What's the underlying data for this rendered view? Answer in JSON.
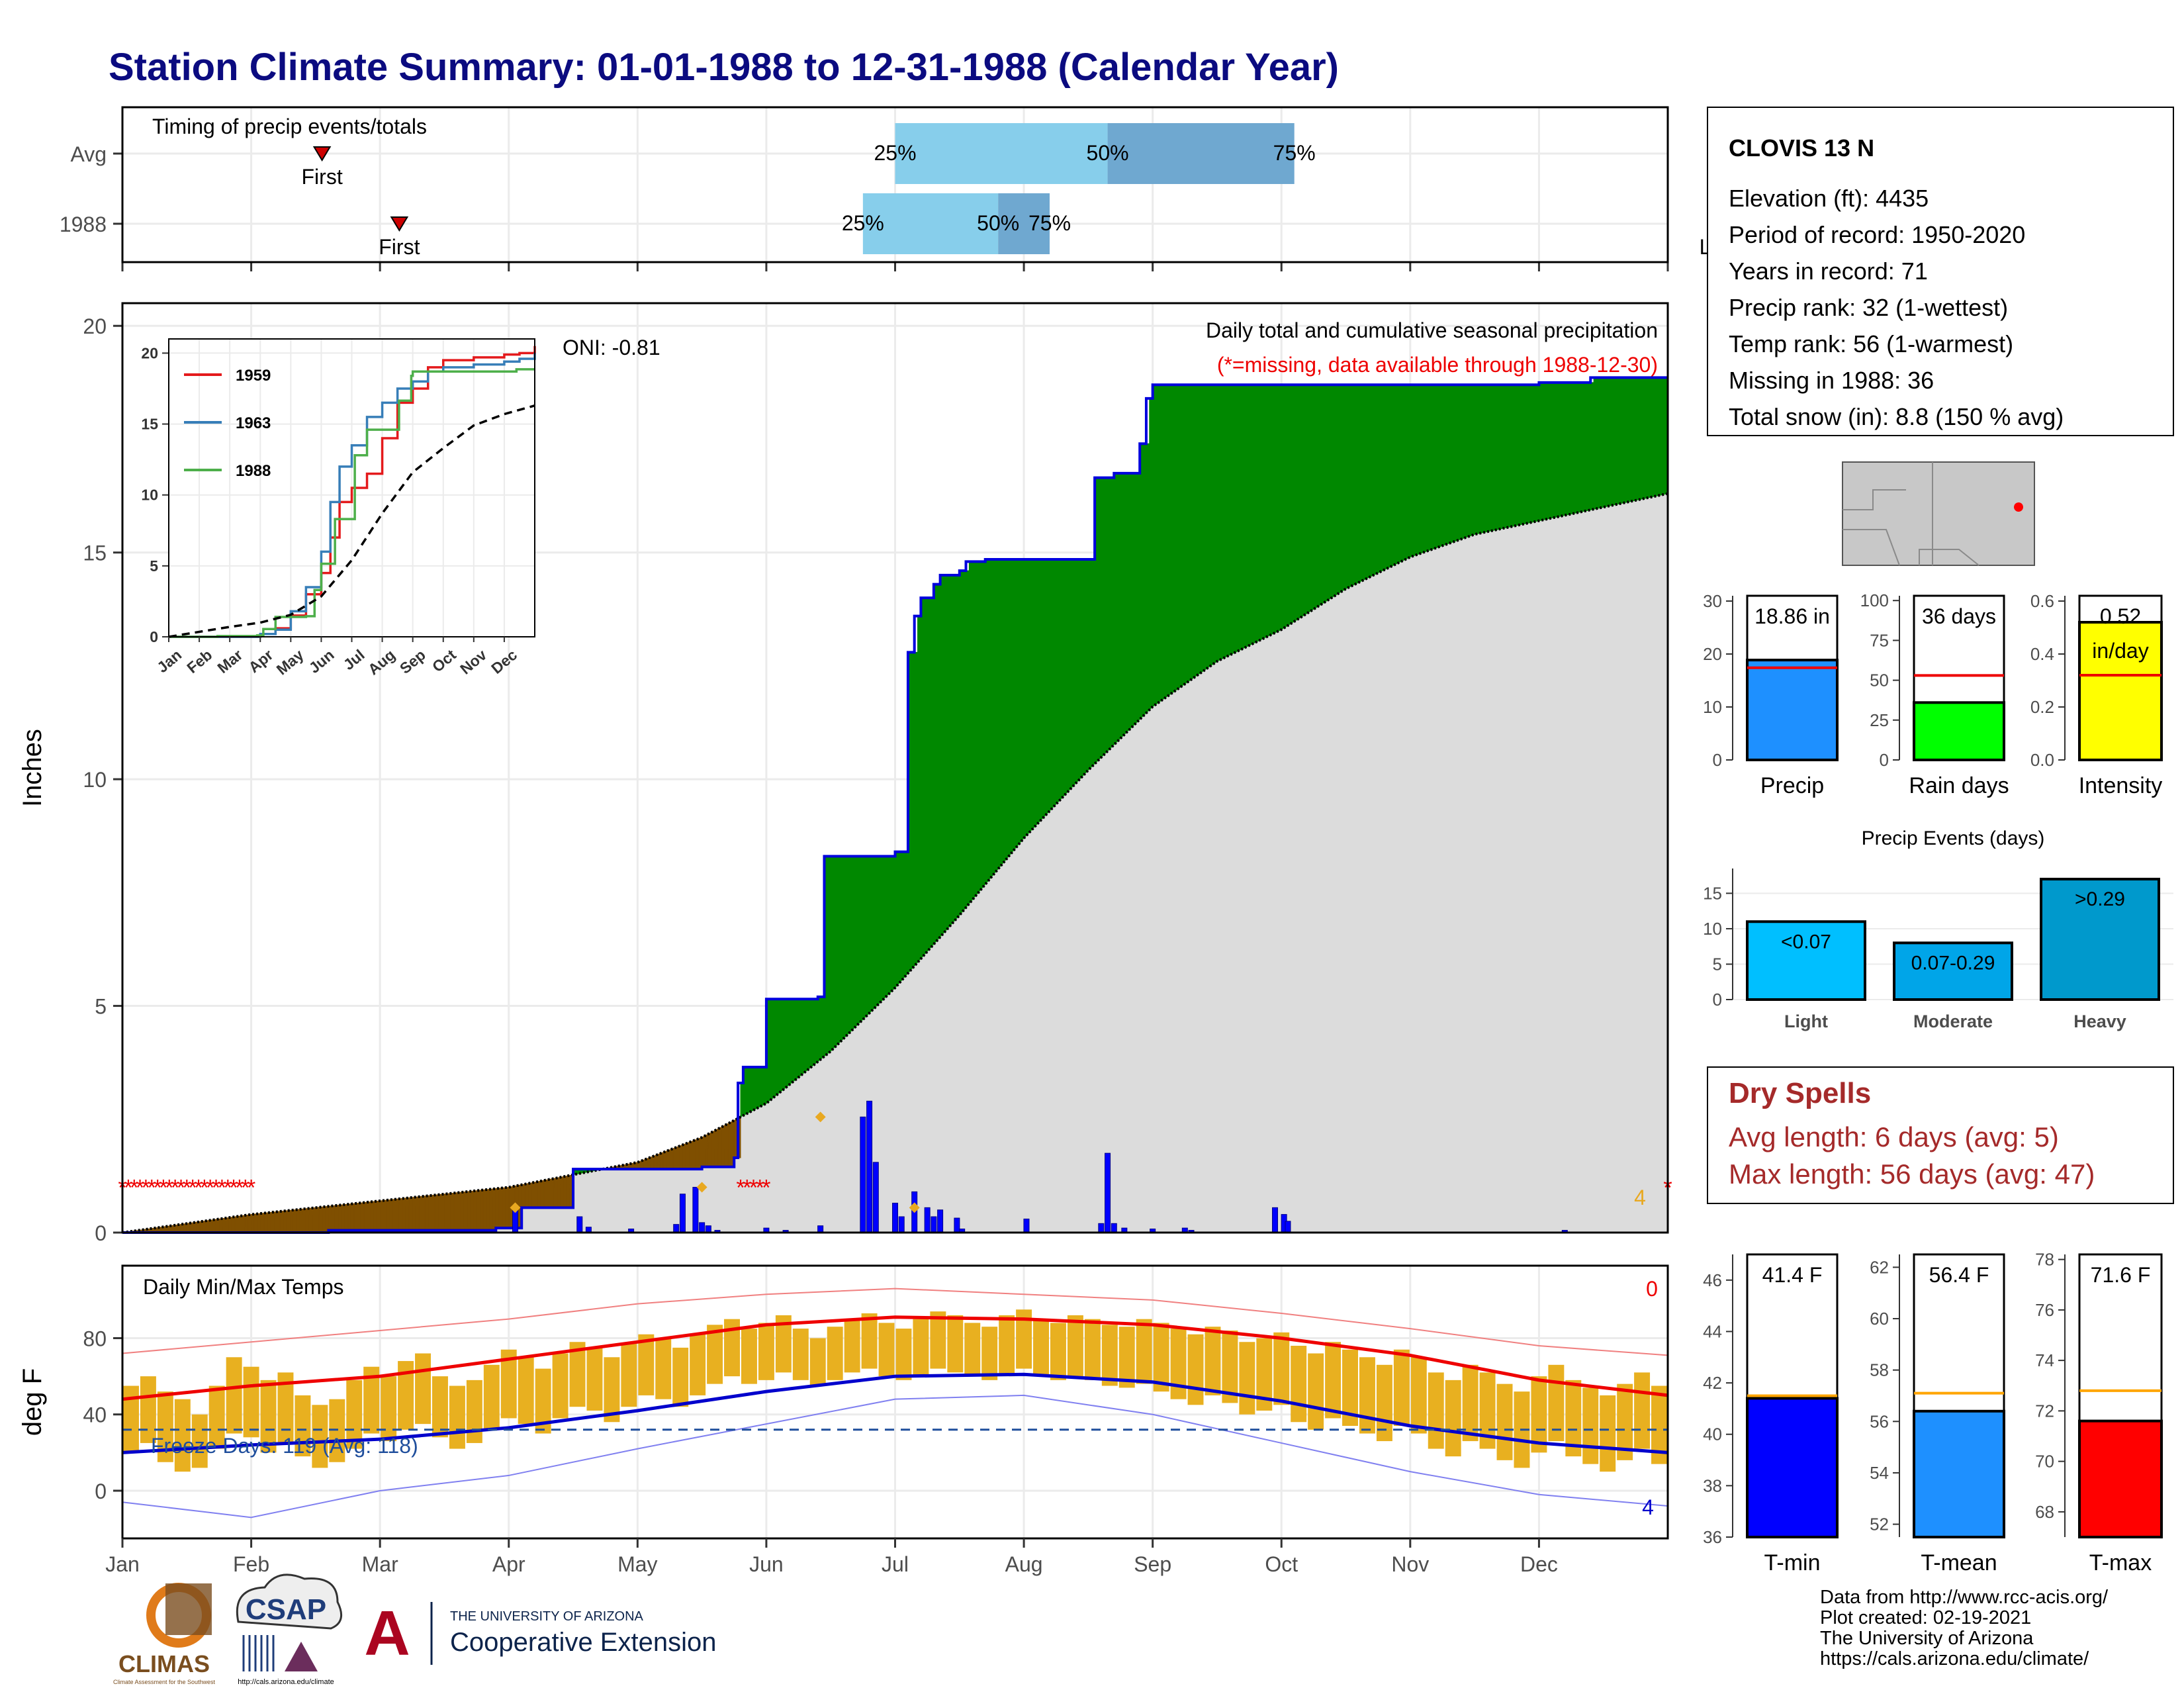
{
  "title": "Station Climate Summary: 01-01-1988 to 12-31-1988 (Calendar Year)",
  "colors": {
    "title": "#0b0b80",
    "green": "#008800",
    "brown": "#7f4f00",
    "grey_fill": "#dcdcdc",
    "blue": "#0000ff",
    "orange": "#e8a820",
    "red": "#ee0000"
  },
  "chart_data": [
    {
      "panel": "timing",
      "type": "bar",
      "title": "Timing of precip events/totals",
      "rows": [
        {
          "label": "Avg",
          "first_month": 1.55,
          "q25_month": 6.0,
          "q50_month": 7.65,
          "q75_month": 9.1,
          "last_month": 12.7
        },
        {
          "label": "1988",
          "first_month": 2.15,
          "q25_month": 5.75,
          "q50_month": 6.8,
          "q75_month": 7.2,
          "last_month": 12.4
        }
      ],
      "quantile_labels": [
        "25%",
        "50%",
        "75%"
      ],
      "marker_labels": [
        "First",
        "Last"
      ]
    },
    {
      "panel": "precip",
      "type": "area",
      "ylabel": "Inches",
      "ylim": [
        0,
        20.5
      ],
      "yticks": [
        0,
        5,
        10,
        15,
        20
      ],
      "text_right": "Daily total and cumulative seasonal precipitation",
      "missing_note": "(*=missing, data available through 1988-12-30)",
      "oni": "ONI: -0.81",
      "end_count": "4",
      "cumulative_1988": {
        "x_month": [
          0,
          1.6,
          2.9,
          3.1,
          3.5,
          4.5,
          4.75,
          4.78,
          4.82,
          5.0,
          5.4,
          5.45,
          6.0,
          6.1,
          6.15,
          6.2,
          6.3,
          6.35,
          6.5,
          6.55,
          6.7,
          7.0,
          7.55,
          7.7,
          7.9,
          7.95,
          8.0,
          9.0,
          11.0,
          11.4,
          12.0
        ],
        "y": [
          0.0,
          0.05,
          0.1,
          0.55,
          1.4,
          1.45,
          1.65,
          3.3,
          3.65,
          5.15,
          5.2,
          8.3,
          8.4,
          12.8,
          13.6,
          14.0,
          14.3,
          14.5,
          14.6,
          14.8,
          14.85,
          14.85,
          16.65,
          16.75,
          17.4,
          18.4,
          18.7,
          18.7,
          18.75,
          18.86,
          18.86
        ]
      },
      "average_cumulative": {
        "x_month": [
          0,
          1,
          2,
          3,
          4,
          4.5,
          5,
          5.5,
          6,
          6.5,
          7,
          7.5,
          8,
          8.5,
          9,
          9.5,
          10,
          10.5,
          11,
          11.5,
          12
        ],
        "y": [
          0.0,
          0.4,
          0.7,
          1.0,
          1.55,
          2.1,
          2.85,
          4.0,
          5.4,
          7.0,
          8.7,
          10.2,
          11.6,
          12.6,
          13.3,
          14.2,
          14.9,
          15.4,
          15.7,
          16.0,
          16.3
        ]
      },
      "daily_bars": {
        "x_month": [
          3.05,
          3.55,
          3.62,
          3.95,
          4.3,
          4.35,
          4.45,
          4.5,
          4.55,
          4.62,
          5.0,
          5.15,
          5.42,
          5.75,
          5.8,
          5.85,
          6.0,
          6.05,
          6.15,
          6.25,
          6.3,
          6.35,
          6.48,
          6.52,
          7.02,
          7.6,
          7.65,
          7.7,
          7.78,
          8.0,
          8.25,
          8.3,
          8.95,
          9.02,
          9.05,
          11.2
        ],
        "y": [
          0.55,
          0.35,
          0.12,
          0.08,
          0.18,
          0.85,
          1.0,
          0.22,
          0.15,
          0.05,
          0.1,
          0.05,
          0.15,
          2.55,
          2.9,
          1.55,
          0.65,
          0.35,
          0.9,
          0.55,
          0.35,
          0.5,
          0.32,
          0.08,
          0.3,
          0.2,
          1.75,
          0.2,
          0.1,
          0.08,
          0.1,
          0.05,
          0.55,
          0.4,
          0.25,
          0.05
        ]
      },
      "missing_markers": [
        {
          "from_month": 0.0,
          "to_month": 1.0
        },
        {
          "from_month": 4.8,
          "to_month": 5.0
        },
        {
          "from_month": 12.0,
          "to_month": 12.0
        }
      ]
    },
    {
      "panel": "inset",
      "type": "line",
      "xlabels": [
        "Jan",
        "Feb",
        "Mar",
        "Apr",
        "May",
        "Jun",
        "Jul",
        "Aug",
        "Sep",
        "Oct",
        "Nov",
        "Dec"
      ],
      "yticks": [
        0,
        5,
        10,
        15,
        20
      ],
      "series": [
        {
          "name": "1959",
          "color": "#e41a1c",
          "x_month": [
            0,
            3,
            3.5,
            4,
            4.5,
            5,
            5.3,
            5.6,
            6,
            6.5,
            7,
            7.5,
            8,
            8.5,
            9,
            10,
            11,
            11.5,
            12
          ],
          "y": [
            0,
            0.2,
            0.6,
            1.5,
            3.0,
            4.5,
            7.0,
            9.5,
            10.5,
            11.5,
            14.0,
            16.5,
            17.5,
            19.0,
            19.5,
            19.7,
            19.9,
            20.0,
            20.5
          ]
        },
        {
          "name": "1963",
          "color": "#377eb8",
          "x_month": [
            0,
            3,
            3.5,
            4,
            4.5,
            5,
            5.3,
            5.6,
            6,
            6.5,
            7,
            7.5,
            8,
            8.5,
            9,
            10,
            11,
            11.5,
            12
          ],
          "y": [
            0,
            0.2,
            0.5,
            1.8,
            3.5,
            6.0,
            9.5,
            12.0,
            13.5,
            15.5,
            16.5,
            17.5,
            18.0,
            18.7,
            19.0,
            19.2,
            19.4,
            19.6,
            20.0
          ]
        },
        {
          "name": "1988",
          "color": "#4daf4a",
          "x_month": [
            0,
            1.6,
            2.9,
            3.1,
            3.5,
            4.5,
            4.78,
            5.0,
            5.45,
            6.1,
            6.5,
            7.55,
            7.95,
            8.0,
            11.4,
            12
          ],
          "y": [
            0.0,
            0.05,
            0.1,
            0.55,
            1.4,
            1.45,
            3.3,
            5.15,
            8.3,
            12.8,
            14.6,
            16.65,
            18.4,
            18.7,
            18.86,
            18.86
          ]
        },
        {
          "name": "",
          "color": "#000000",
          "dashed": true,
          "x_month": [
            0,
            2,
            3,
            4,
            5,
            6,
            7,
            8,
            9,
            10,
            11,
            12
          ],
          "y": [
            0.0,
            0.7,
            1.0,
            1.55,
            2.85,
            5.4,
            8.7,
            11.6,
            13.3,
            14.9,
            15.7,
            16.3
          ]
        }
      ]
    },
    {
      "panel": "temps",
      "type": "bar",
      "title": "Daily Min/Max Temps",
      "ylabel": "deg F",
      "ylim": [
        -25,
        118
      ],
      "yticks": [
        0,
        40,
        80
      ],
      "freeze_line": 32,
      "freeze_text": "Freeze Days: 119 (Avg: 118)",
      "count_top": "0",
      "count_bottom": "4",
      "avg_max": {
        "x_month": [
          0,
          1,
          2,
          3,
          4,
          5,
          6,
          7,
          8,
          9,
          10,
          11,
          12
        ],
        "y": [
          48,
          55,
          60,
          69,
          78,
          87,
          91,
          90,
          87,
          80,
          71,
          58,
          50
        ]
      },
      "avg_min": {
        "x_month": [
          0,
          1,
          2,
          3,
          4,
          5,
          6,
          7,
          8,
          9,
          10,
          11,
          12
        ],
        "y": [
          20,
          24,
          27,
          33,
          42,
          52,
          60,
          61,
          57,
          47,
          34,
          25,
          20
        ]
      },
      "record_max": {
        "x_month": [
          0,
          1,
          2,
          3,
          4,
          5,
          6,
          7,
          8,
          9,
          10,
          11,
          12
        ],
        "y": [
          72,
          78,
          84,
          90,
          98,
          103,
          106,
          103,
          100,
          93,
          85,
          76,
          71
        ]
      },
      "record_min": {
        "x_month": [
          0,
          1,
          2,
          3,
          4,
          5,
          6,
          7,
          8,
          9,
          10,
          11,
          12
        ],
        "y": [
          -6,
          -14,
          0,
          8,
          22,
          35,
          48,
          50,
          40,
          25,
          10,
          -2,
          -8
        ]
      },
      "daily_hi": [
        55,
        60,
        52,
        48,
        40,
        55,
        70,
        65,
        58,
        62,
        50,
        45,
        48,
        58,
        65,
        60,
        68,
        72,
        60,
        55,
        58,
        66,
        74,
        70,
        64,
        72,
        78,
        75,
        70,
        77,
        82,
        80,
        75,
        82,
        87,
        90,
        85,
        88,
        92,
        85,
        80,
        86,
        90,
        93,
        88,
        85,
        90,
        94,
        92,
        88,
        86,
        92,
        95,
        90,
        88,
        92,
        90,
        87,
        86,
        90,
        88,
        85,
        82,
        86,
        84,
        78,
        80,
        83,
        76,
        72,
        78,
        74,
        70,
        66,
        74,
        70,
        62,
        58,
        66,
        62,
        56,
        52,
        60,
        66,
        58,
        54,
        50,
        56,
        62,
        55
      ],
      "daily_lo": [
        20,
        25,
        15,
        10,
        12,
        22,
        30,
        28,
        20,
        25,
        18,
        12,
        15,
        22,
        30,
        26,
        32,
        35,
        28,
        22,
        25,
        32,
        38,
        35,
        30,
        38,
        44,
        42,
        36,
        44,
        50,
        48,
        44,
        50,
        56,
        60,
        56,
        58,
        62,
        58,
        55,
        58,
        62,
        64,
        60,
        58,
        60,
        64,
        62,
        60,
        58,
        60,
        64,
        60,
        58,
        60,
        58,
        55,
        54,
        56,
        52,
        48,
        45,
        50,
        46,
        40,
        42,
        45,
        36,
        32,
        38,
        34,
        30,
        26,
        34,
        30,
        22,
        18,
        26,
        22,
        16,
        12,
        20,
        26,
        18,
        14,
        10,
        16,
        22,
        14
      ]
    },
    {
      "panel": "summary_bars",
      "type": "bar",
      "charts": [
        {
          "name": "Precip",
          "value": 18.86,
          "label": "18.86 in",
          "avg": 17.4,
          "ylim": [
            0,
            31
          ],
          "yticks": [
            0,
            10,
            20,
            30
          ],
          "color": "#1e90ff"
        },
        {
          "name": "Rain days",
          "value": 36,
          "label": "36 days",
          "avg": 53,
          "ylim": [
            0,
            103
          ],
          "yticks": [
            0,
            25,
            50,
            75,
            100
          ],
          "color": "#00ff00"
        },
        {
          "name": "Intensity",
          "value": 0.52,
          "label": "0.52",
          "label2": "in/day",
          "avg": 0.32,
          "ylim": [
            0,
            0.62
          ],
          "yticks": [
            "0.0",
            "0.2",
            "0.4",
            "0.6"
          ],
          "color": "#ffff00"
        }
      ]
    },
    {
      "panel": "events",
      "type": "bar",
      "title": "Precip Events (days)",
      "categories": [
        "Light",
        "Moderate",
        "Heavy"
      ],
      "values": [
        11,
        8,
        17
      ],
      "labels": [
        "<0.07",
        "0.07-0.29",
        ">0.29"
      ],
      "colors": [
        "#00bfff",
        "#00a5e8",
        "#0099cc"
      ],
      "ylim": [
        0,
        18.5
      ],
      "yticks": [
        0,
        5,
        10,
        15
      ]
    },
    {
      "panel": "temp_bars",
      "type": "bar",
      "charts": [
        {
          "name": "T-min",
          "value": 41.4,
          "label": "41.4 F",
          "avg": 41.5,
          "ylim": [
            36,
            47
          ],
          "yticks": [
            36,
            38,
            40,
            42,
            44,
            46
          ],
          "color": "#0000ff"
        },
        {
          "name": "T-mean",
          "value": 56.4,
          "label": "56.4 F",
          "avg": 57.1,
          "ylim": [
            51.5,
            62.5
          ],
          "yticks": [
            52,
            54,
            56,
            58,
            60,
            62
          ],
          "color": "#1e90ff"
        },
        {
          "name": "T-max",
          "value": 71.6,
          "label": "71.6 F",
          "avg": 72.8,
          "ylim": [
            67,
            78.2
          ],
          "yticks": [
            68,
            70,
            72,
            74,
            76,
            78
          ],
          "color": "#ff0000"
        }
      ]
    }
  ],
  "months": [
    "Jan",
    "Feb",
    "Mar",
    "Apr",
    "May",
    "Jun",
    "Jul",
    "Aug",
    "Sep",
    "Oct",
    "Nov",
    "Dec"
  ],
  "station": {
    "name": "CLOVIS 13 N",
    "lines": [
      "Elevation (ft): 4435",
      "Period of record: 1950-2020",
      "Years in record: 71",
      "Precip rank: 32 (1-wettest)",
      "Temp rank: 56 (1-warmest)",
      "Missing in 1988: 36",
      "Total snow (in): 8.8 (150 % avg)"
    ]
  },
  "dry_spells": {
    "title": "Dry Spells",
    "avg": "Avg length: 6 days (avg: 5)",
    "max": "Max length: 56 days (avg: 47)"
  },
  "footer": {
    "lines": [
      "Data from http://www.rcc-acis.org/",
      "Plot created: 02-19-2021",
      "The University of Arizona",
      "https://cals.arizona.edu/climate/"
    ]
  },
  "logos": {
    "climas": "CLIMAS",
    "climas_sub": "Climate Assessment for the Southwest",
    "csap": "CSAP",
    "csap_url": "http://cals.arizona.edu/climate",
    "ua_letter": "A",
    "ua_small": "THE UNIVERSITY OF ARIZONA",
    "ua_big": "Cooperative Extension"
  }
}
